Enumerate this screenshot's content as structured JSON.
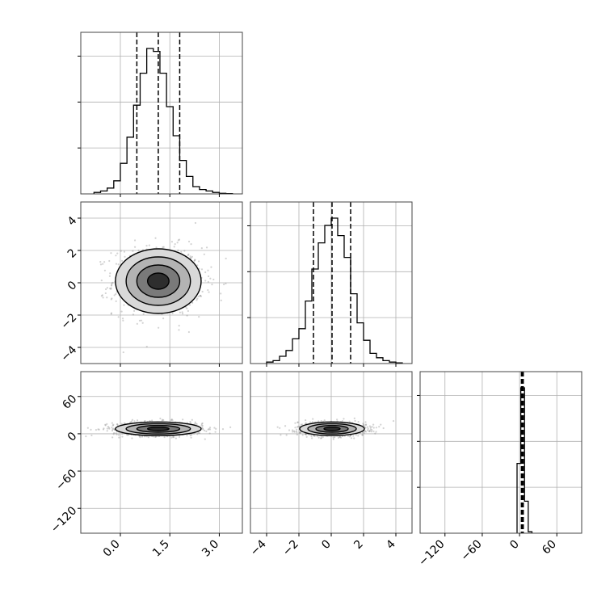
{
  "chart_data": {
    "type": "corner",
    "grid": true,
    "axes_labels": [],
    "variables": [
      {
        "range": [
          -1.2,
          3.7
        ],
        "ticks": [
          0.0,
          1.5,
          3.0
        ],
        "tick_labels": [
          "0.0",
          "1.5",
          "3.0"
        ],
        "quantiles": [
          0.5,
          1.15,
          1.8
        ]
      },
      {
        "range": [
          -5.0,
          5.0
        ],
        "ticks": [
          -4,
          -2,
          0,
          2,
          4
        ],
        "tick_labels": [
          "−4",
          "−2",
          "0",
          "2",
          "4"
        ],
        "quantiles": [
          -1.1,
          0.05,
          1.2
        ]
      },
      {
        "range": [
          -160,
          100
        ],
        "ticks": [
          -120,
          -60,
          0,
          60
        ],
        "tick_labels": [
          "−120",
          "−60",
          "0",
          "60"
        ],
        "quantiles": [
          3,
          4.5,
          6
        ]
      }
    ],
    "histograms": [
      {
        "variable": 0,
        "bin_edges": [
          -0.8,
          -0.6,
          -0.4,
          -0.2,
          0.0,
          0.2,
          0.4,
          0.6,
          0.8,
          1.0,
          1.2,
          1.4,
          1.6,
          1.8,
          2.0,
          2.2,
          2.4,
          2.6,
          2.8,
          3.0,
          3.2,
          3.4
        ],
        "counts": [
          0.01,
          0.02,
          0.04,
          0.09,
          0.21,
          0.39,
          0.61,
          0.83,
          1.0,
          0.98,
          0.83,
          0.6,
          0.4,
          0.23,
          0.12,
          0.05,
          0.03,
          0.02,
          0.01,
          0.004,
          0.002
        ]
      },
      {
        "variable": 1,
        "bin_edges": [
          -4.0,
          -3.6,
          -3.2,
          -2.8,
          -2.4,
          -2.0,
          -1.6,
          -1.2,
          -0.8,
          -0.4,
          0.0,
          0.4,
          0.8,
          1.2,
          1.6,
          2.0,
          2.4,
          2.8,
          3.2,
          3.6,
          4.0,
          4.4
        ],
        "counts": [
          0.01,
          0.02,
          0.05,
          0.09,
          0.17,
          0.24,
          0.43,
          0.65,
          0.83,
          0.95,
          1.0,
          0.88,
          0.73,
          0.48,
          0.28,
          0.16,
          0.07,
          0.04,
          0.02,
          0.01,
          0.005
        ]
      },
      {
        "variable": 2,
        "bin_edges": [
          -4,
          2,
          8,
          14,
          20
        ],
        "counts": [
          0.48,
          1.0,
          0.22,
          0.01
        ]
      }
    ],
    "panels_2d": [
      {
        "x_var": 0,
        "y_var": 1,
        "center": [
          1.15,
          0.1
        ],
        "sigma": [
          0.65,
          1.0
        ],
        "levels_sigma": [
          0.5,
          1.0,
          1.5,
          2.0
        ]
      },
      {
        "x_var": 0,
        "y_var": 2,
        "center": [
          1.15,
          8
        ],
        "sigma": [
          0.65,
          5.5
        ],
        "levels_sigma": [
          0.5,
          1.0,
          1.5,
          2.0
        ]
      },
      {
        "x_var": 1,
        "y_var": 2,
        "center": [
          0.05,
          8
        ],
        "sigma": [
          1.0,
          5.5
        ],
        "levels_sigma": [
          0.5,
          1.0,
          1.5,
          2.0
        ]
      }
    ],
    "colors": {
      "line": "#000000",
      "grid": "#b0b0b0",
      "points": "#808080",
      "spine": "#000000"
    }
  }
}
